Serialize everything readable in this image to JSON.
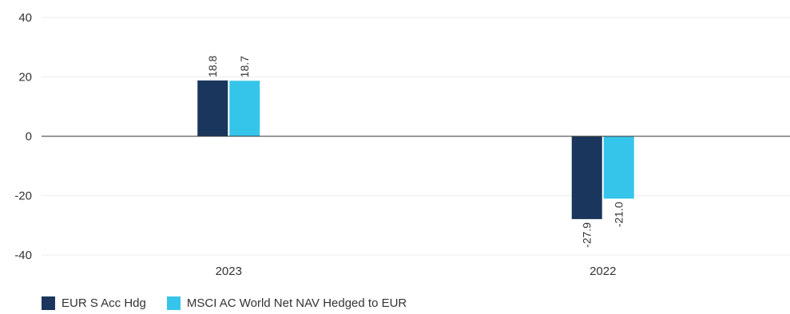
{
  "chart_data": {
    "type": "bar",
    "categories": [
      "2023",
      "2022"
    ],
    "series": [
      {
        "name": "EUR S Acc Hdg",
        "values": [
          18.8,
          -27.9
        ],
        "labels": [
          "18.8",
          "-27.9"
        ],
        "color": "#1b365d"
      },
      {
        "name": "MSCI AC World Net NAV Hedged to EUR",
        "values": [
          18.7,
          -21.0
        ],
        "labels": [
          "18.7",
          "-21.0"
        ],
        "color": "#36c5ea"
      }
    ],
    "yticks": [
      40,
      20,
      0,
      -20,
      -40
    ],
    "ytick_labels": [
      "40",
      "20",
      "0",
      "-20",
      "-40"
    ],
    "ylim": [
      -40,
      40
    ],
    "grid": true,
    "legend": "bottom-left",
    "title": "",
    "xlabel": "",
    "ylabel": ""
  }
}
